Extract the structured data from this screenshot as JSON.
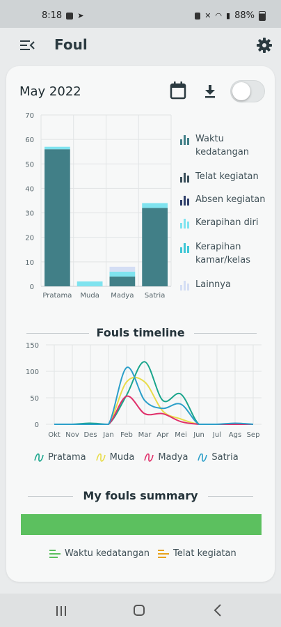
{
  "status_bar": {
    "time": "8:18",
    "battery": "88%"
  },
  "app": {
    "title": "Foul"
  },
  "header": {
    "month": "May 2022"
  },
  "bar_chart": {
    "chart_data": {
      "type": "bar",
      "stacked": true,
      "categories": [
        "Pratama",
        "Muda",
        "Madya",
        "Satria"
      ],
      "ylim": [
        0,
        70
      ],
      "yticks": [
        0,
        10,
        20,
        30,
        40,
        50,
        60,
        70
      ],
      "series": [
        {
          "name": "Waktu kedatangan",
          "values": [
            56,
            0,
            4,
            32
          ],
          "color": "#417f87"
        },
        {
          "name": "Telat kegiatan",
          "values": [
            0,
            0,
            0,
            0
          ],
          "color": "#3a4f5a"
        },
        {
          "name": "Absen kegiatan",
          "values": [
            0,
            0,
            0,
            0
          ],
          "color": "#2f3f6a"
        },
        {
          "name": "Kerapihan diri",
          "values": [
            1,
            2,
            2,
            2
          ],
          "color": "#7fe3ef"
        },
        {
          "name": "Kerapihan kamar/kelas",
          "values": [
            0,
            0,
            0,
            0
          ],
          "color": "#3fc7d6"
        },
        {
          "name": "Lainnya",
          "values": [
            0,
            0,
            2,
            0
          ],
          "color": "#d4def4"
        }
      ],
      "legend_position": "right"
    }
  },
  "timeline": {
    "title": "Fouls timeline",
    "chart_data": {
      "type": "line",
      "x": [
        "Okt",
        "Nov",
        "Des",
        "Jan",
        "Feb",
        "Mar",
        "Apr",
        "Mei",
        "Jun",
        "Jul",
        "Ags",
        "Sep"
      ],
      "ylim": [
        0,
        150
      ],
      "yticks": [
        0,
        50,
        100,
        150
      ],
      "series": [
        {
          "name": "Pratama",
          "values": [
            0,
            0,
            2,
            0,
            55,
            118,
            45,
            57,
            0,
            0,
            0,
            0
          ],
          "color": "#1aa58c"
        },
        {
          "name": "Muda",
          "values": [
            0,
            0,
            0,
            0,
            80,
            80,
            25,
            10,
            0,
            0,
            0,
            0
          ],
          "color": "#e8dc4a"
        },
        {
          "name": "Madya",
          "values": [
            0,
            0,
            0,
            0,
            53,
            20,
            20,
            5,
            0,
            0,
            0,
            0
          ],
          "color": "#e0306a"
        },
        {
          "name": "Satria",
          "values": [
            0,
            0,
            0,
            0,
            107,
            45,
            30,
            38,
            0,
            0,
            2,
            0
          ],
          "color": "#2c9fc9"
        }
      ],
      "legend_position": "bottom"
    }
  },
  "summary": {
    "title": "My fouls summary",
    "chart_data": {
      "type": "bar",
      "orientation": "horizontal",
      "stacked_percent": true,
      "series": [
        {
          "name": "Waktu kedatangan",
          "value": 100,
          "color": "#5cc05f"
        },
        {
          "name": "Telat kegiatan",
          "value": 0,
          "color": "#e8a21b"
        }
      ]
    }
  }
}
